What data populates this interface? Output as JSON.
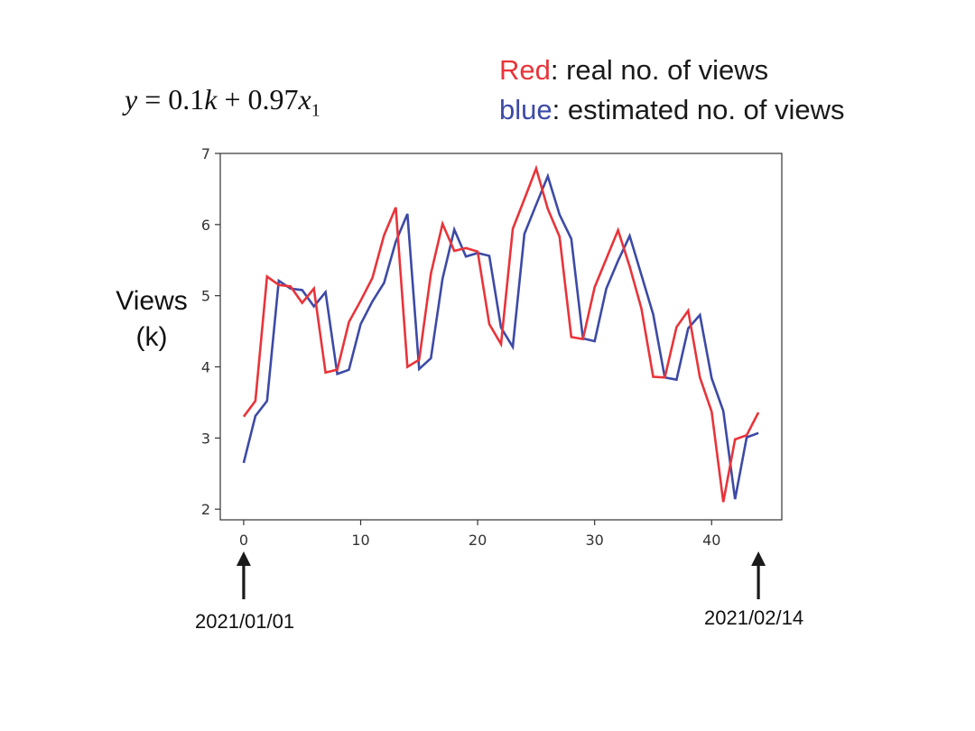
{
  "formula": {
    "lhs": "y",
    "eq": " = 0.1",
    "k": "k",
    "plus": " + 0.97",
    "x": "x",
    "sub": "1"
  },
  "legend": {
    "red_word": "Red",
    "red_rest": ": real no. of views",
    "blue_word": "blue",
    "blue_rest": ":  estimated no. of views"
  },
  "ylabel": {
    "line1": "Views",
    "line2": "(k)"
  },
  "annotations": {
    "start_date": "2021/01/01",
    "end_date": "2021/02/14"
  },
  "colors": {
    "real": "#e8343a",
    "estimated": "#3d4aa6",
    "axis": "#333333",
    "arrow": "#1a1a1a"
  },
  "chart_data": {
    "type": "line",
    "xlabel": "",
    "ylabel": "Views (k)",
    "xlim": [
      -2,
      46
    ],
    "ylim": [
      1.85,
      7
    ],
    "xticks": [
      0,
      10,
      20,
      30,
      40
    ],
    "yticks": [
      2,
      3,
      4,
      5,
      6,
      7
    ],
    "grid": false,
    "series": [
      {
        "name": "Red",
        "color": "#e8343a",
        "x": [
          0,
          1,
          2,
          3,
          4,
          5,
          6,
          7,
          8,
          9,
          10,
          11,
          12,
          13,
          14,
          15,
          16,
          17,
          18,
          19,
          20,
          21,
          22,
          23,
          24,
          25,
          26,
          27,
          28,
          29,
          30,
          31,
          32,
          33,
          34,
          35,
          36,
          37,
          38,
          39,
          40,
          41,
          42,
          43,
          44
        ],
        "values": [
          3.3,
          3.52,
          5.27,
          5.15,
          5.13,
          4.9,
          5.1,
          3.92,
          3.96,
          4.63,
          4.93,
          5.25,
          5.85,
          6.24,
          4,
          4.1,
          5.31,
          6.01,
          5.63,
          5.67,
          5.62,
          4.6,
          4.32,
          5.94,
          6.36,
          6.79,
          6.22,
          5.83,
          4.42,
          4.39,
          5.12,
          5.52,
          5.92,
          5.41,
          4.82,
          3.86,
          3.85,
          4.56,
          4.79,
          3.85,
          3.37,
          2.1,
          2.98,
          3.04,
          3.36
        ]
      },
      {
        "name": "blue",
        "color": "#3d4aa6",
        "x": [
          0,
          1,
          2,
          3,
          4,
          5,
          6,
          7,
          8,
          9,
          10,
          11,
          12,
          13,
          14,
          15,
          16,
          17,
          18,
          19,
          20,
          21,
          22,
          23,
          24,
          25,
          26,
          27,
          28,
          29,
          30,
          31,
          32,
          33,
          34,
          35,
          36,
          37,
          38,
          39,
          40,
          41,
          42,
          43,
          44
        ],
        "values": [
          2.65,
          3.31,
          3.52,
          5.21,
          5.1,
          5.08,
          4.85,
          5.05,
          3.9,
          3.96,
          4.6,
          4.92,
          5.18,
          5.76,
          6.15,
          3.97,
          4.12,
          5.24,
          5.93,
          5.55,
          5.6,
          5.56,
          4.55,
          4.28,
          5.87,
          6.28,
          6.68,
          6.14,
          5.8,
          4.4,
          4.36,
          5.1,
          5.49,
          5.84,
          5.29,
          4.74,
          3.85,
          3.82,
          4.54,
          4.73,
          3.84,
          3.38,
          2.14,
          3.01,
          3.07
        ]
      }
    ]
  }
}
